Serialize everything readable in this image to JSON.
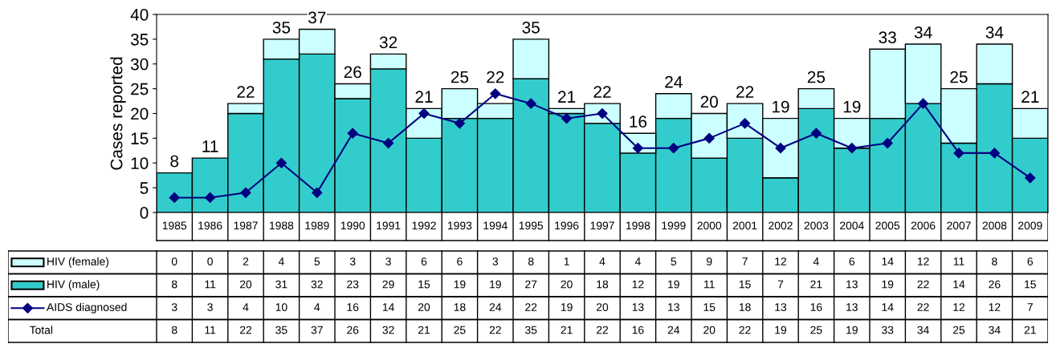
{
  "chart_data": {
    "type": "bar",
    "stacked": true,
    "ylabel": "Cases reported",
    "categories": [
      "1985",
      "1986",
      "1987",
      "1988",
      "1989",
      "1990",
      "1991",
      "1992",
      "1993",
      "1994",
      "1995",
      "1996",
      "1997",
      "1998",
      "1999",
      "2000",
      "2001",
      "2002",
      "2003",
      "2004",
      "2005",
      "2006",
      "2007",
      "2008",
      "2009"
    ],
    "series": [
      {
        "name": "HIV (male)",
        "color": "#33cccc",
        "values": [
          8,
          11,
          20,
          31,
          32,
          23,
          29,
          15,
          19,
          19,
          27,
          20,
          18,
          12,
          19,
          11,
          15,
          7,
          21,
          13,
          19,
          22,
          14,
          26,
          15
        ]
      },
      {
        "name": "HIV (female)",
        "color": "#ccffff",
        "values": [
          0,
          0,
          2,
          4,
          5,
          3,
          3,
          6,
          6,
          3,
          8,
          1,
          4,
          4,
          5,
          9,
          7,
          12,
          4,
          6,
          14,
          12,
          11,
          8,
          6
        ]
      },
      {
        "name": "AIDS diagnosed",
        "type": "line",
        "color": "#000080",
        "marker": "diamond",
        "values": [
          3,
          3,
          4,
          10,
          4,
          16,
          14,
          20,
          18,
          24,
          22,
          19,
          20,
          13,
          13,
          15,
          18,
          13,
          16,
          13,
          14,
          22,
          12,
          12,
          7
        ]
      }
    ],
    "totals": [
      "8",
      "11",
      "22",
      "35",
      "37",
      "26",
      "32",
      "21",
      "25",
      "22",
      "35",
      "21",
      "22",
      "16",
      "24",
      "20",
      "22",
      "19",
      "25",
      "19",
      "33",
      "34",
      "25",
      "34",
      "21"
    ],
    "annotations": [
      "Total"
    ],
    "ylim": [
      0,
      40
    ],
    "yticks": [
      0,
      5,
      10,
      15,
      20,
      25,
      30,
      35,
      40
    ],
    "grid": false,
    "legend": "bottom",
    "data_labels": true
  }
}
